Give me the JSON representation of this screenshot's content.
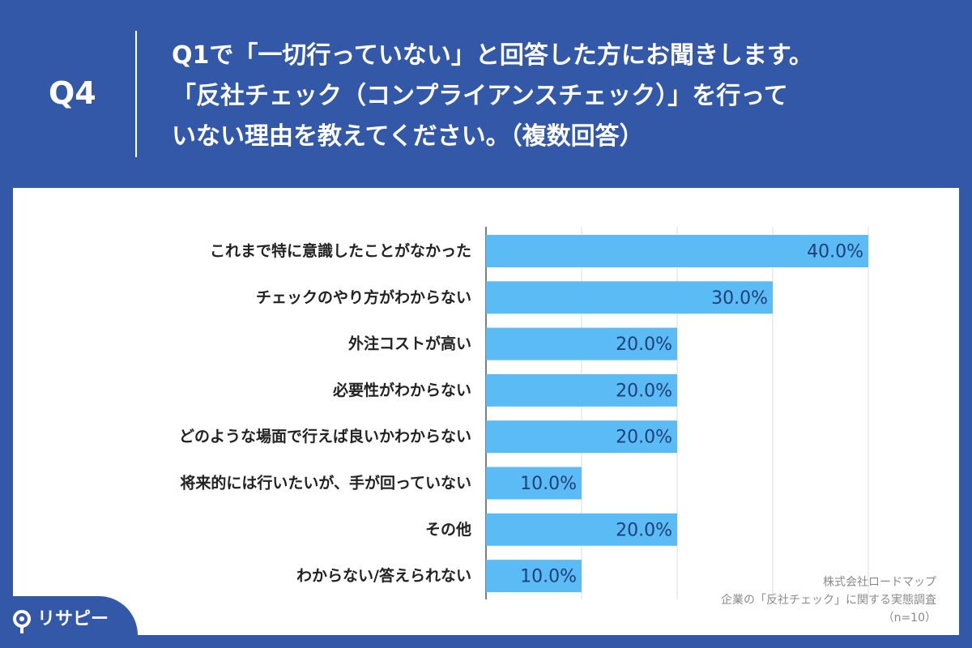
{
  "header": {
    "question_number": "Q4",
    "question_lines": [
      "Q1で「一切行っていない」と回答した方にお聞きします。",
      "「反社チェック（コンプライアンスチェック）」を行って",
      "いない理由を教えてください。（複数回答）"
    ]
  },
  "source": {
    "lines": [
      "株式会社ロードマップ",
      "企業の「反社チェック」に関する実態調査",
      "（n=10）"
    ]
  },
  "logo": {
    "text": "リサピー"
  },
  "colors": {
    "background": "#3358a8",
    "bar": "#5bbcf5",
    "grid": "#dddddd"
  },
  "chart_data": {
    "type": "bar",
    "orientation": "horizontal",
    "categories": [
      "これまで特に意識したことがなかった",
      "チェックのやり方がわからない",
      "外注コストが高い",
      "必要性がわからない",
      "どのような場面で行えば良いかわからない",
      "将来的には行いたいが、手が回っていない",
      "その他",
      "わからない/答えられない"
    ],
    "values": [
      40.0,
      30.0,
      20.0,
      20.0,
      20.0,
      10.0,
      20.0,
      10.0
    ],
    "value_labels": [
      "40.0%",
      "30.0%",
      "20.0%",
      "20.0%",
      "20.0%",
      "10.0%",
      "20.0%",
      "10.0%"
    ],
    "xlim": [
      0,
      40
    ],
    "grid": true,
    "gridline_step": 10
  }
}
